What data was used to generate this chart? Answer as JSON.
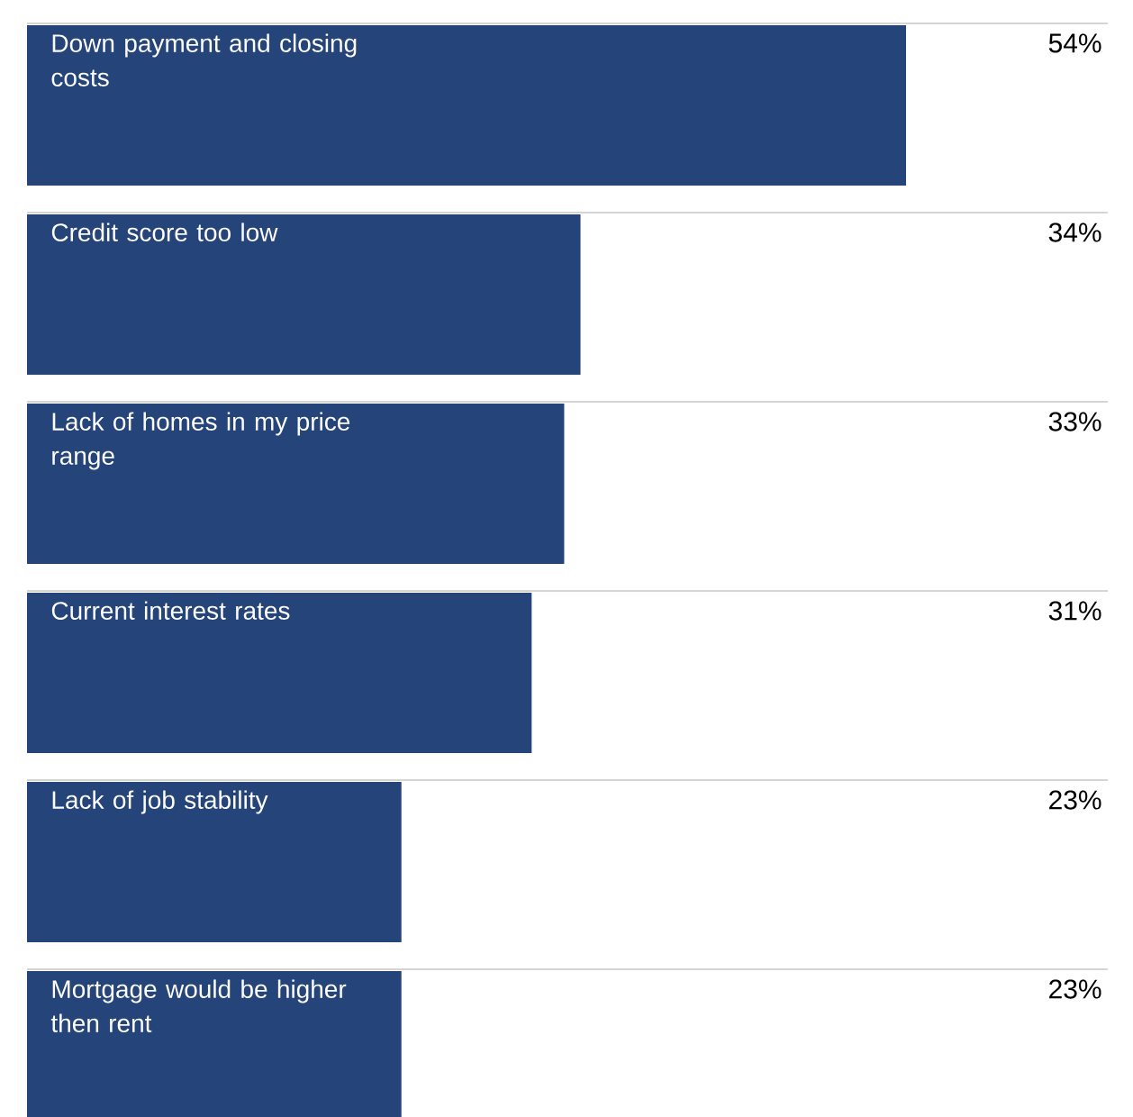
{
  "chart_data": {
    "type": "bar",
    "orientation": "horizontal",
    "categories": [
      "Down payment and closing costs",
      "Credit score too low",
      "Lack of homes in my price range",
      "Current interest rates",
      "Lack of job stability",
      "Mortgage would be higher then rent"
    ],
    "values": [
      54,
      34,
      33,
      31,
      23,
      23
    ],
    "value_labels": [
      "54%",
      "34%",
      "33%",
      "31%",
      "23%",
      "23%"
    ],
    "color": "#25447a"
  }
}
